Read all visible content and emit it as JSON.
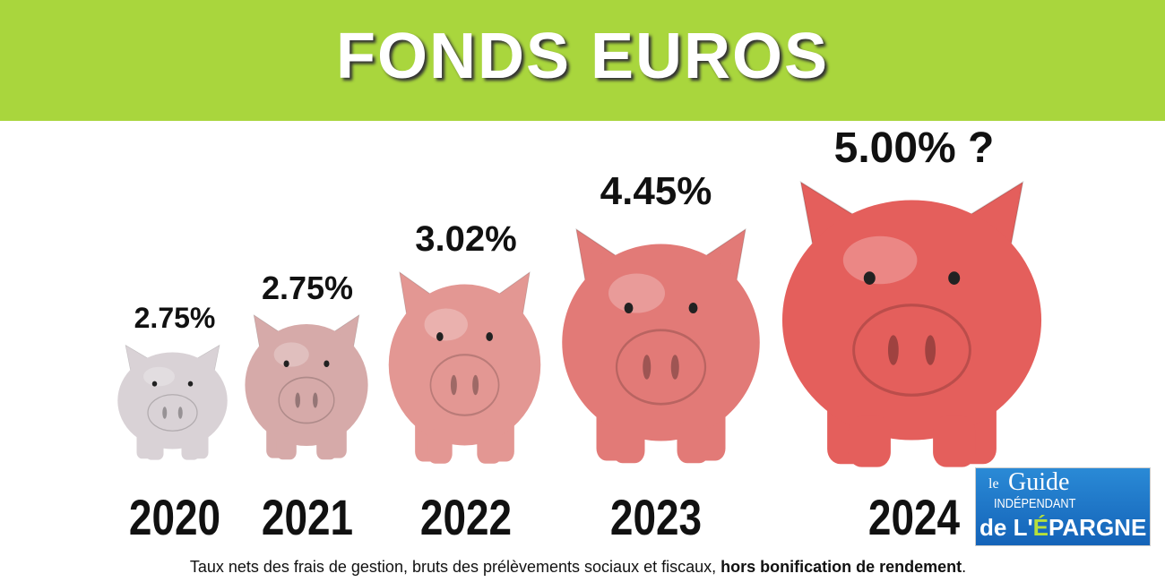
{
  "title": "FONDS EUROS",
  "chart_data": {
    "type": "bar",
    "categories": [
      "2020",
      "2021",
      "2022",
      "2023",
      "2024"
    ],
    "values": [
      2.75,
      2.75,
      3.02,
      4.45,
      5.0
    ],
    "value_labels": [
      "2.75%",
      "2.75%",
      "3.02%",
      "4.45%",
      "5.00% ?"
    ],
    "pig_colors": [
      "#d9d2d6",
      "#d6aaa9",
      "#e39793",
      "#e27a77",
      "#e45f5c"
    ]
  },
  "footer": {
    "text": "Taux nets des frais de gestion, bruts des prélèvements sociaux et fiscaux, ",
    "bold": "hors bonification de rendement",
    "end": "."
  },
  "logo": {
    "line1": "le",
    "line2": "Guide",
    "line3": "INDÉPENDANT",
    "line4a": "de L'",
    "line4b": "É",
    "line4c": "PARGNE"
  },
  "colors": {
    "banner": "#a9d63d",
    "title": "#ffffff"
  }
}
